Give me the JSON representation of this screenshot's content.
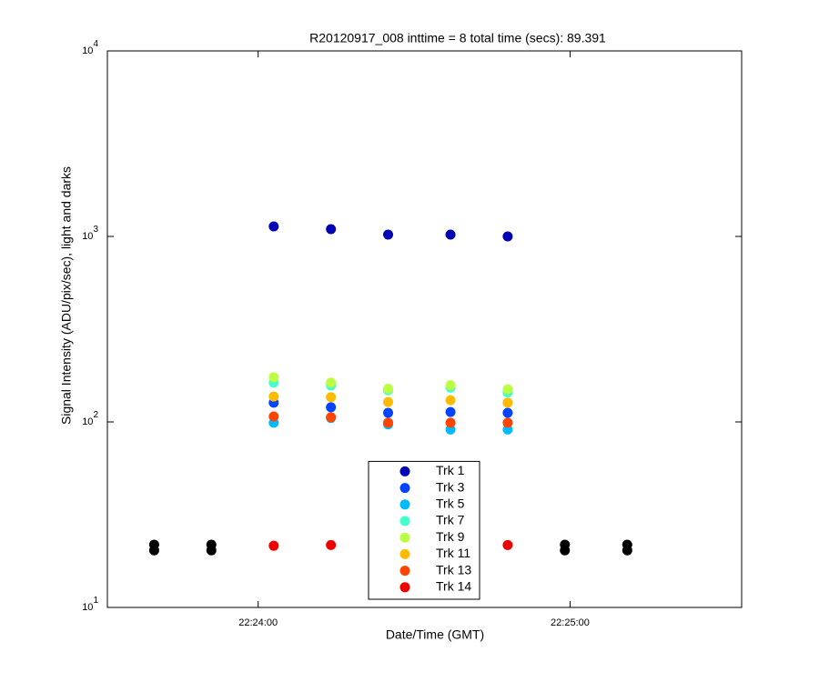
{
  "chart_data": {
    "type": "scatter",
    "title": "R20120917_008 inttime = 8 total time (secs): 89.391",
    "x_label": "Date/Time (GMT)",
    "y_label": "Signal Intensity (ADU/pix/sec), light and darks",
    "x": [
      "22:23:40",
      "22:23:51",
      "22:24:03",
      "22:24:14",
      "22:24:25",
      "22:24:37",
      "22:24:48",
      "22:24:59",
      "22:25:11"
    ],
    "xlim": [
      "22:23:31",
      "22:25:33"
    ],
    "xticks": [
      "22:24:00",
      "22:25:00"
    ],
    "ylim": [
      10,
      10000
    ],
    "yticks": [
      {
        "value": 10,
        "label": "10^1"
      },
      {
        "value": 100,
        "label": "10^2"
      },
      {
        "value": 1000,
        "label": "10^3"
      },
      {
        "value": 10000,
        "label": "10^4"
      }
    ],
    "log_y": true,
    "legend": "bottom",
    "series": [
      {
        "name": "Trk 1",
        "color": "#0000b4",
        "values": [
          null,
          null,
          1132,
          1094,
          1023,
          1023,
          1000,
          null,
          null
        ]
      },
      {
        "name": "Trk 3",
        "color": "#0044ff",
        "values": [
          null,
          null,
          127,
          120,
          112,
          113,
          112,
          null,
          null
        ]
      },
      {
        "name": "Trk 5",
        "color": "#00bbff",
        "values": [
          null,
          null,
          99,
          105,
          97,
          91,
          91,
          null,
          null
        ]
      },
      {
        "name": "Trk 7",
        "color": "#44ffcc",
        "values": [
          null,
          null,
          163,
          157,
          148,
          153,
          144,
          null,
          null
        ]
      },
      {
        "name": "Trk 9",
        "color": "#bbff44",
        "values": [
          null,
          null,
          174,
          163,
          151,
          158,
          150,
          null,
          null
        ]
      },
      {
        "name": "Trk 11",
        "color": "#ffbb00",
        "values": [
          null,
          null,
          137,
          136,
          128,
          131,
          127,
          null,
          null
        ]
      },
      {
        "name": "Trk 13",
        "color": "#ff4400",
        "values": [
          null,
          null,
          107,
          106,
          99,
          99,
          99,
          null,
          null
        ]
      },
      {
        "name": "Trk 14",
        "color": "#ee0000",
        "values": [
          null,
          null,
          21.5,
          21.7,
          null,
          null,
          21.7,
          null,
          null
        ]
      },
      {
        "color": "#000000",
        "values": [
          21.8,
          21.8,
          null,
          null,
          null,
          null,
          null,
          21.8,
          21.8
        ]
      },
      {
        "color": "#000000",
        "values": [
          20.3,
          20.3,
          null,
          null,
          null,
          null,
          null,
          20.3,
          20.3
        ]
      }
    ]
  }
}
